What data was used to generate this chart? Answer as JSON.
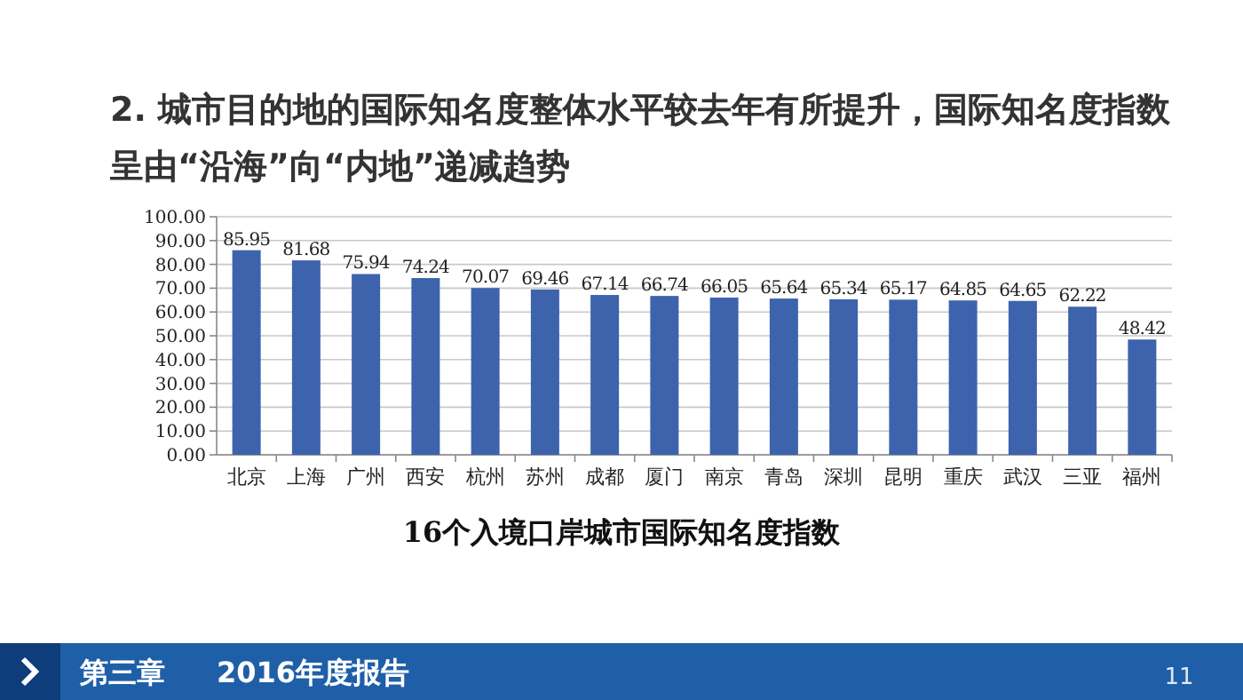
{
  "chart_data": {
    "type": "bar",
    "title": "2. 城市目的地的国际知名度整体水平较去年有所提升，国际知名度指数呈由“沿海”向“内地”递减趋势",
    "subtitle": "16个入境口岸城市国际知名度指数",
    "categories": [
      "北京",
      "上海",
      "广州",
      "西安",
      "杭州",
      "苏州",
      "成都",
      "厦门",
      "南京",
      "青岛",
      "深圳",
      "昆明",
      "重庆",
      "武汉",
      "三亚",
      "福州"
    ],
    "values": [
      85.95,
      81.68,
      75.94,
      74.24,
      70.07,
      69.46,
      67.14,
      66.74,
      66.05,
      65.64,
      65.34,
      65.17,
      64.85,
      64.65,
      62.22,
      48.42
    ],
    "color": "#3d63ad",
    "data_labels": true,
    "grid": "y",
    "ylim": [
      0,
      100
    ],
    "yticks": [
      {
        "value": 0,
        "label": "0.00"
      },
      {
        "value": 10,
        "label": "10.00"
      },
      {
        "value": 20,
        "label": "20.00"
      },
      {
        "value": 30,
        "label": "30.00"
      },
      {
        "value": 40,
        "label": "40.00"
      },
      {
        "value": 50,
        "label": "50.00"
      },
      {
        "value": 60,
        "label": "60.00"
      },
      {
        "value": 70,
        "label": "70.00"
      },
      {
        "value": 80,
        "label": "80.00"
      },
      {
        "value": 90,
        "label": "90.00"
      },
      {
        "value": 100,
        "label": "100.00"
      }
    ],
    "annotations": [
      "第三章",
      "2016年度报告",
      "11"
    ]
  }
}
